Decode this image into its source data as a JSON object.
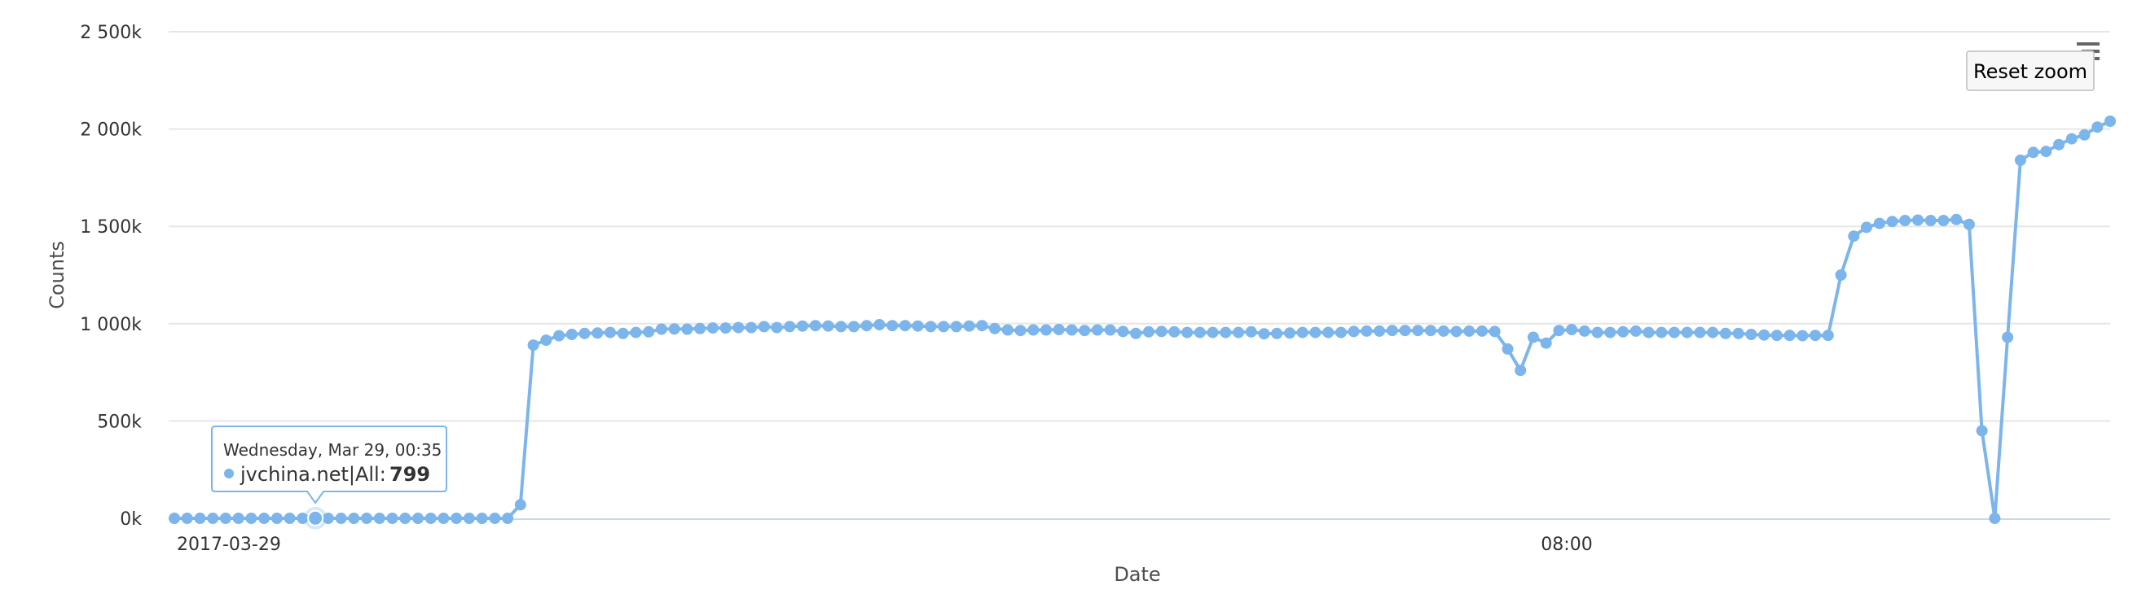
{
  "colors": {
    "series": "#7cb5ec",
    "grid": "#e6e6e6",
    "axis_line": "#ccd6eb",
    "tooltip_border": "#7cb5ec"
  },
  "chart_data": {
    "type": "line",
    "title": "",
    "xlabel": "Date",
    "ylabel": "Counts",
    "ylim": [
      0,
      2500000
    ],
    "y_ticks": [
      0,
      500000,
      1000000,
      1500000,
      2000000,
      2500000
    ],
    "y_tick_labels": [
      "0k",
      "500k",
      "1 000k",
      "1 500k",
      "2 000k",
      "2 500k"
    ],
    "x_tick_labels": [
      "2017-03-29",
      "08:00"
    ],
    "grid": true,
    "legend": "none",
    "series": [
      {
        "name": "jvchina.net|All",
        "values": [
          0,
          0,
          0,
          0,
          0,
          0,
          0,
          0,
          0,
          0,
          0,
          799,
          0,
          0,
          0,
          0,
          0,
          0,
          0,
          0,
          0,
          0,
          0,
          0,
          0,
          0,
          0,
          70000,
          890000,
          915000,
          938000,
          945000,
          950000,
          952000,
          955000,
          950000,
          955000,
          958000,
          972000,
          973000,
          972000,
          975000,
          978000,
          978000,
          980000,
          980000,
          985000,
          980000,
          985000,
          988000,
          990000,
          988000,
          985000,
          985000,
          990000,
          995000,
          990000,
          990000,
          988000,
          985000,
          985000,
          985000,
          988000,
          990000,
          975000,
          968000,
          965000,
          968000,
          968000,
          970000,
          968000,
          965000,
          968000,
          968000,
          960000,
          950000,
          958000,
          960000,
          958000,
          955000,
          955000,
          955000,
          955000,
          955000,
          958000,
          948000,
          950000,
          952000,
          955000,
          955000,
          955000,
          955000,
          960000,
          962000,
          962000,
          965000,
          965000,
          965000,
          965000,
          962000,
          960000,
          962000,
          962000,
          960000,
          870000,
          760000,
          930000,
          900000,
          965000,
          970000,
          962000,
          955000,
          955000,
          958000,
          962000,
          955000,
          955000,
          955000,
          955000,
          955000,
          955000,
          950000,
          950000,
          945000,
          942000,
          940000,
          940000,
          938000,
          940000,
          940000,
          1250000,
          1450000,
          1495000,
          1515000,
          1525000,
          1530000,
          1532000,
          1530000,
          1530000,
          1535000,
          1510000,
          450000,
          0,
          930000,
          1840000,
          1880000,
          1885000,
          1920000,
          1950000,
          1970000,
          2010000,
          2040000
        ]
      }
    ],
    "tooltip": {
      "date": "Wednesday, Mar 29, 00:35",
      "series": "jvchina.net|All:",
      "value": "799"
    }
  },
  "controls": {
    "reset_zoom_label": "Reset zoom",
    "menu_icon": "hamburger-menu-icon"
  }
}
